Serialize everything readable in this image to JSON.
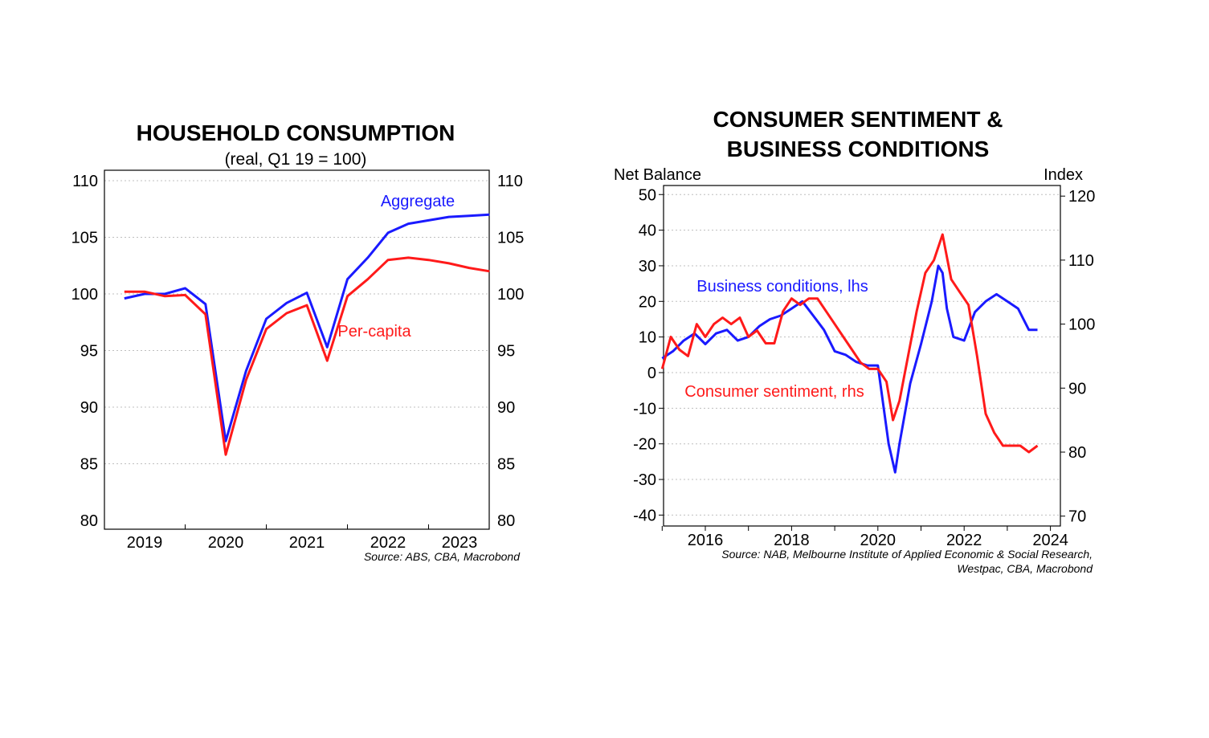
{
  "chart_data": [
    {
      "type": "line",
      "title": "HOUSEHOLD CONSUMPTION",
      "subtitle": "(real, Q1 19 = 100)",
      "ylim": [
        80,
        110
      ],
      "y2lim": [
        80,
        110
      ],
      "yticks": [
        "80",
        "85",
        "90",
        "95",
        "100",
        "105",
        "110"
      ],
      "y2ticks": [
        "80",
        "85",
        "90",
        "95",
        "100",
        "105",
        "110"
      ],
      "xticks": [
        "2019",
        "2020",
        "2021",
        "2022",
        "2023"
      ],
      "source": "Source: ABS, CBA, Macrobond",
      "x": [
        2018.75,
        2019.0,
        2019.25,
        2019.5,
        2019.75,
        2020.0,
        2020.25,
        2020.5,
        2020.75,
        2021.0,
        2021.25,
        2021.5,
        2021.75,
        2022.0,
        2022.25,
        2022.5,
        2022.75,
        2023.0,
        2023.25
      ],
      "series": [
        {
          "name": "Aggregate",
          "color": "#1a1aff",
          "axis": "left",
          "values": [
            99.6,
            100.0,
            100.0,
            100.5,
            99.1,
            87.0,
            93.2,
            97.8,
            99.2,
            100.1,
            95.3,
            101.3,
            103.2,
            105.4,
            106.2,
            106.5,
            106.8,
            106.9,
            107.0
          ]
        },
        {
          "name": "Per-capita",
          "color": "#ff1a1a",
          "axis": "left",
          "values": [
            100.2,
            100.2,
            99.8,
            99.9,
            98.2,
            85.8,
            92.4,
            96.9,
            98.3,
            99.0,
            94.1,
            99.8,
            101.3,
            103.0,
            103.2,
            103.0,
            102.7,
            102.3,
            102.0
          ]
        }
      ],
      "labels": {
        "aggregate": "Aggregate",
        "per_capita": "Per-capita"
      }
    },
    {
      "type": "line",
      "title_line1": "CONSUMER SENTIMENT &",
      "title_line2": "BUSINESS CONDITIONS",
      "ylabel": "Net Balance",
      "y2label": "Index",
      "ylim": [
        -42,
        52
      ],
      "y2lim": [
        69.7,
        122.5
      ],
      "yticks": [
        "-40",
        "-30",
        "-20",
        "-10",
        "0",
        "10",
        "20",
        "30",
        "40",
        "50"
      ],
      "y2ticks": [
        "70",
        "80",
        "90",
        "100",
        "110",
        "120"
      ],
      "xticks": [
        "2016",
        "2018",
        "2020",
        "2022",
        "2024"
      ],
      "xlim": [
        2015.0,
        2024.0
      ],
      "source_line1": "Source: NAB, Melbourne Institute of Applied Economic & Social Research,",
      "source_line2": "Westpac, CBA, Macrobond",
      "series": [
        {
          "name": "Business conditions, lhs",
          "color": "#1a1aff",
          "axis": "left",
          "x": [
            2015.0,
            2015.25,
            2015.5,
            2015.75,
            2016.0,
            2016.25,
            2016.5,
            2016.75,
            2017.0,
            2017.25,
            2017.5,
            2017.75,
            2018.0,
            2018.25,
            2018.5,
            2018.75,
            2019.0,
            2019.25,
            2019.5,
            2019.75,
            2020.0,
            2020.25,
            2020.4,
            2020.5,
            2020.75,
            2021.0,
            2021.25,
            2021.4,
            2021.5,
            2021.6,
            2021.75,
            2022.0,
            2022.25,
            2022.5,
            2022.75,
            2023.0,
            2023.25,
            2023.5,
            2023.7
          ],
          "values": [
            4,
            6,
            9,
            11,
            8,
            11,
            12,
            9,
            10,
            13,
            15,
            16,
            18,
            20,
            16,
            12,
            6,
            5,
            3,
            2,
            2,
            -20,
            -28,
            -20,
            -3,
            8,
            20,
            30,
            28,
            18,
            10,
            9,
            17,
            20,
            22,
            20,
            18,
            12,
            12
          ]
        },
        {
          "name": "Consumer sentiment, rhs",
          "color": "#ff1a1a",
          "axis": "right",
          "x": [
            2015.0,
            2015.2,
            2015.4,
            2015.6,
            2015.8,
            2016.0,
            2016.2,
            2016.4,
            2016.6,
            2016.8,
            2017.0,
            2017.2,
            2017.4,
            2017.6,
            2017.8,
            2018.0,
            2018.2,
            2018.4,
            2018.6,
            2018.8,
            2019.0,
            2019.2,
            2019.4,
            2019.6,
            2019.8,
            2020.0,
            2020.2,
            2020.35,
            2020.5,
            2020.7,
            2020.9,
            2021.1,
            2021.3,
            2021.5,
            2021.7,
            2021.9,
            2022.1,
            2022.3,
            2022.5,
            2022.7,
            2022.9,
            2023.1,
            2023.3,
            2023.5,
            2023.7
          ],
          "values": [
            93,
            98,
            96,
            95,
            100,
            98,
            100,
            101,
            100,
            101,
            98,
            99,
            97,
            97,
            102,
            104,
            103,
            104,
            104,
            102,
            100,
            98,
            96,
            94,
            93,
            93,
            91,
            85,
            88,
            95,
            102,
            108,
            110,
            114,
            107,
            105,
            103,
            95,
            86,
            83,
            81,
            81,
            81,
            80,
            81
          ]
        }
      ],
      "labels": {
        "business": "Business conditions, lhs",
        "consumer": "Consumer sentiment, rhs"
      }
    }
  ]
}
